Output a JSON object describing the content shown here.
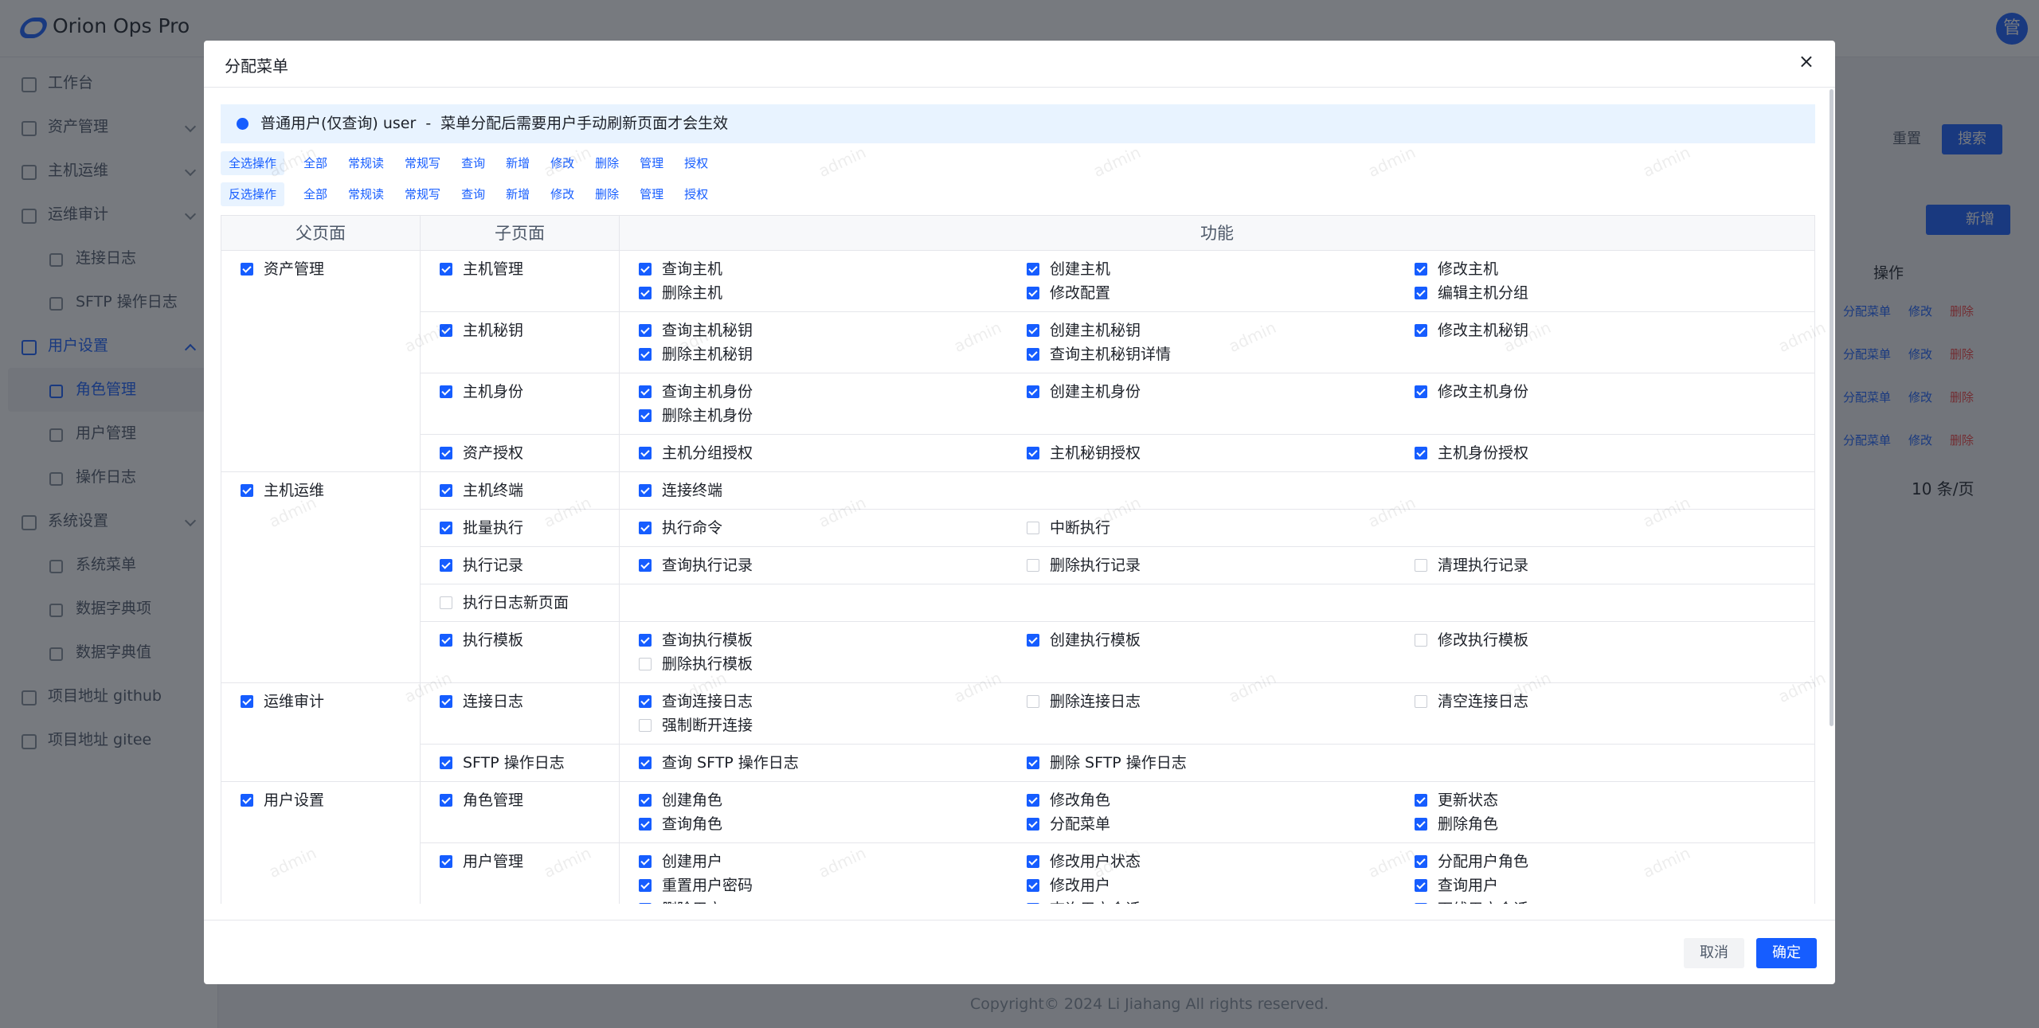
{
  "app": {
    "logo": "Orion Ops Pro",
    "avatar": "管",
    "menu": [
      {
        "label": "工作台",
        "child": false,
        "expandable": false
      },
      {
        "label": "资产管理",
        "child": false,
        "expandable": true
      },
      {
        "label": "主机运维",
        "child": false,
        "expandable": true
      },
      {
        "label": "运维审计",
        "child": false,
        "expandable": true
      },
      {
        "label": "连接日志",
        "child": true,
        "expandable": false
      },
      {
        "label": "SFTP 操作日志",
        "child": true,
        "expandable": false
      },
      {
        "label": "用户设置",
        "child": false,
        "expandable": true,
        "open": true
      },
      {
        "label": "角色管理",
        "child": true,
        "expandable": false,
        "selected": true
      },
      {
        "label": "用户管理",
        "child": true,
        "expandable": false
      },
      {
        "label": "操作日志",
        "child": true,
        "expandable": false
      },
      {
        "label": "系统设置",
        "child": false,
        "expandable": true
      },
      {
        "label": "系统菜单",
        "child": true,
        "expandable": false
      },
      {
        "label": "数据字典项",
        "child": true,
        "expandable": false
      },
      {
        "label": "数据字典值",
        "child": true,
        "expandable": false
      },
      {
        "label": "项目地址 github",
        "child": false,
        "expandable": false
      },
      {
        "label": "项目地址 gitee",
        "child": false,
        "expandable": false
      }
    ]
  },
  "background": {
    "reset": "重置",
    "search": "搜索",
    "add": "新增",
    "action_header": "操作",
    "rows": [
      {
        "assign": "分配菜单",
        "edit": "修改",
        "delete": "删除"
      },
      {
        "assign": "分配菜单",
        "edit": "修改",
        "delete": "删除"
      },
      {
        "assign": "分配菜单",
        "edit": "修改",
        "delete": "删除"
      },
      {
        "assign": "分配菜单",
        "edit": "修改",
        "delete": "删除"
      }
    ],
    "page_size": "10 条/页",
    "copyright": "Copyright© 2024 Li Jiahang All rights reserved."
  },
  "modal": {
    "title": "分配菜单",
    "close": "×",
    "watermark": "admin",
    "alert": {
      "role": "普通用户(仅查询) user",
      "separator": "-",
      "message": "菜单分配后需要用户手动刷新页面才会生效"
    },
    "select_row": {
      "label": "全选操作",
      "options": [
        "全部",
        "常规读",
        "常规写",
        "查询",
        "新增",
        "修改",
        "删除",
        "管理",
        "授权"
      ]
    },
    "invert_row": {
      "label": "反选操作",
      "options": [
        "全部",
        "常规读",
        "常规写",
        "查询",
        "新增",
        "修改",
        "删除",
        "管理",
        "授权"
      ]
    },
    "headers": [
      "父页面",
      "子页面",
      "功能"
    ],
    "groups": [
      {
        "label": "资产管理",
        "checked": true,
        "children": [
          {
            "label": "主机管理",
            "checked": true,
            "functions": [
              {
                "label": "查询主机",
                "checked": true
              },
              {
                "label": "创建主机",
                "checked": true
              },
              {
                "label": "修改主机",
                "checked": true
              },
              {
                "label": "删除主机",
                "checked": true
              },
              {
                "label": "修改配置",
                "checked": true
              },
              {
                "label": "编辑主机分组",
                "checked": true
              }
            ]
          },
          {
            "label": "主机秘钥",
            "checked": true,
            "functions": [
              {
                "label": "查询主机秘钥",
                "checked": true
              },
              {
                "label": "创建主机秘钥",
                "checked": true
              },
              {
                "label": "修改主机秘钥",
                "checked": true
              },
              {
                "label": "删除主机秘钥",
                "checked": true
              },
              {
                "label": "查询主机秘钥详情",
                "checked": true
              }
            ]
          },
          {
            "label": "主机身份",
            "checked": true,
            "functions": [
              {
                "label": "查询主机身份",
                "checked": true
              },
              {
                "label": "创建主机身份",
                "checked": true
              },
              {
                "label": "修改主机身份",
                "checked": true
              },
              {
                "label": "删除主机身份",
                "checked": true
              }
            ]
          },
          {
            "label": "资产授权",
            "checked": true,
            "functions": [
              {
                "label": "主机分组授权",
                "checked": true
              },
              {
                "label": "主机秘钥授权",
                "checked": true
              },
              {
                "label": "主机身份授权",
                "checked": true
              }
            ]
          }
        ]
      },
      {
        "label": "主机运维",
        "checked": true,
        "children": [
          {
            "label": "主机终端",
            "checked": true,
            "functions": [
              {
                "label": "连接终端",
                "checked": true
              }
            ]
          },
          {
            "label": "批量执行",
            "checked": true,
            "functions": [
              {
                "label": "执行命令",
                "checked": true
              },
              {
                "label": "中断执行",
                "checked": false
              }
            ]
          },
          {
            "label": "执行记录",
            "checked": true,
            "functions": [
              {
                "label": "查询执行记录",
                "checked": true
              },
              {
                "label": "删除执行记录",
                "checked": false
              },
              {
                "label": "清理执行记录",
                "checked": false
              }
            ]
          },
          {
            "label": "执行日志新页面",
            "checked": false,
            "functions": []
          },
          {
            "label": "执行模板",
            "checked": true,
            "functions": [
              {
                "label": "查询执行模板",
                "checked": true
              },
              {
                "label": "创建执行模板",
                "checked": true
              },
              {
                "label": "修改执行模板",
                "checked": false
              },
              {
                "label": "删除执行模板",
                "checked": false
              }
            ]
          }
        ]
      },
      {
        "label": "运维审计",
        "checked": true,
        "children": [
          {
            "label": "连接日志",
            "checked": true,
            "functions": [
              {
                "label": "查询连接日志",
                "checked": true
              },
              {
                "label": "删除连接日志",
                "checked": false
              },
              {
                "label": "清空连接日志",
                "checked": false
              },
              {
                "label": "强制断开连接",
                "checked": false
              }
            ]
          },
          {
            "label": "SFTP 操作日志",
            "checked": true,
            "functions": [
              {
                "label": "查询 SFTP 操作日志",
                "checked": true
              },
              {
                "label": "删除 SFTP 操作日志",
                "checked": true
              }
            ]
          }
        ]
      },
      {
        "label": "用户设置",
        "checked": true,
        "children": [
          {
            "label": "角色管理",
            "checked": true,
            "functions": [
              {
                "label": "创建角色",
                "checked": true
              },
              {
                "label": "修改角色",
                "checked": true
              },
              {
                "label": "更新状态",
                "checked": true
              },
              {
                "label": "查询角色",
                "checked": true
              },
              {
                "label": "分配菜单",
                "checked": true
              },
              {
                "label": "删除角色",
                "checked": true
              }
            ]
          },
          {
            "label": "用户管理",
            "checked": true,
            "functions": [
              {
                "label": "创建用户",
                "checked": true
              },
              {
                "label": "修改用户状态",
                "checked": true
              },
              {
                "label": "分配用户角色",
                "checked": true
              },
              {
                "label": "重置用户密码",
                "checked": true
              },
              {
                "label": "修改用户",
                "checked": true
              },
              {
                "label": "查询用户",
                "checked": true
              },
              {
                "label": "删除用户",
                "checked": true
              },
              {
                "label": "查询用户会话",
                "checked": true
              },
              {
                "label": "下线用户会话",
                "checked": true
              }
            ]
          }
        ]
      }
    ],
    "cancel": "取消",
    "confirm": "确定"
  }
}
